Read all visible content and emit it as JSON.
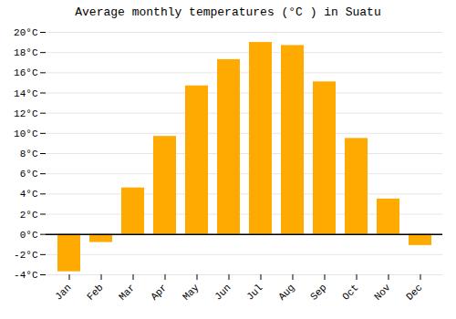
{
  "chart_data": {
    "type": "bar",
    "title": "Average monthly temperatures (°C ) in Suatu",
    "categories": [
      "Jan",
      "Feb",
      "Mar",
      "Apr",
      "May",
      "Jun",
      "Jul",
      "Aug",
      "Sep",
      "Oct",
      "Nov",
      "Dec"
    ],
    "values": [
      -3.7,
      -0.8,
      4.6,
      9.7,
      14.7,
      17.3,
      19.0,
      18.7,
      15.1,
      9.5,
      3.5,
      -1.1
    ],
    "color": "#FFAA00",
    "ylim": [
      -4,
      20
    ],
    "yticks": [
      {
        "value": -4,
        "label": "-4°C"
      },
      {
        "value": -2,
        "label": "-2°C"
      },
      {
        "value": 0,
        "label": "0°C"
      },
      {
        "value": 2,
        "label": "2°C"
      },
      {
        "value": 4,
        "label": "4°C"
      },
      {
        "value": 6,
        "label": "6°C"
      },
      {
        "value": 8,
        "label": "8°C"
      },
      {
        "value": 10,
        "label": "10°C"
      },
      {
        "value": 12,
        "label": "12°C"
      },
      {
        "value": 14,
        "label": "14°C"
      },
      {
        "value": 16,
        "label": "16°C"
      },
      {
        "value": 18,
        "label": "18°C"
      },
      {
        "value": 20,
        "label": "20°C"
      }
    ],
    "grid": true
  }
}
